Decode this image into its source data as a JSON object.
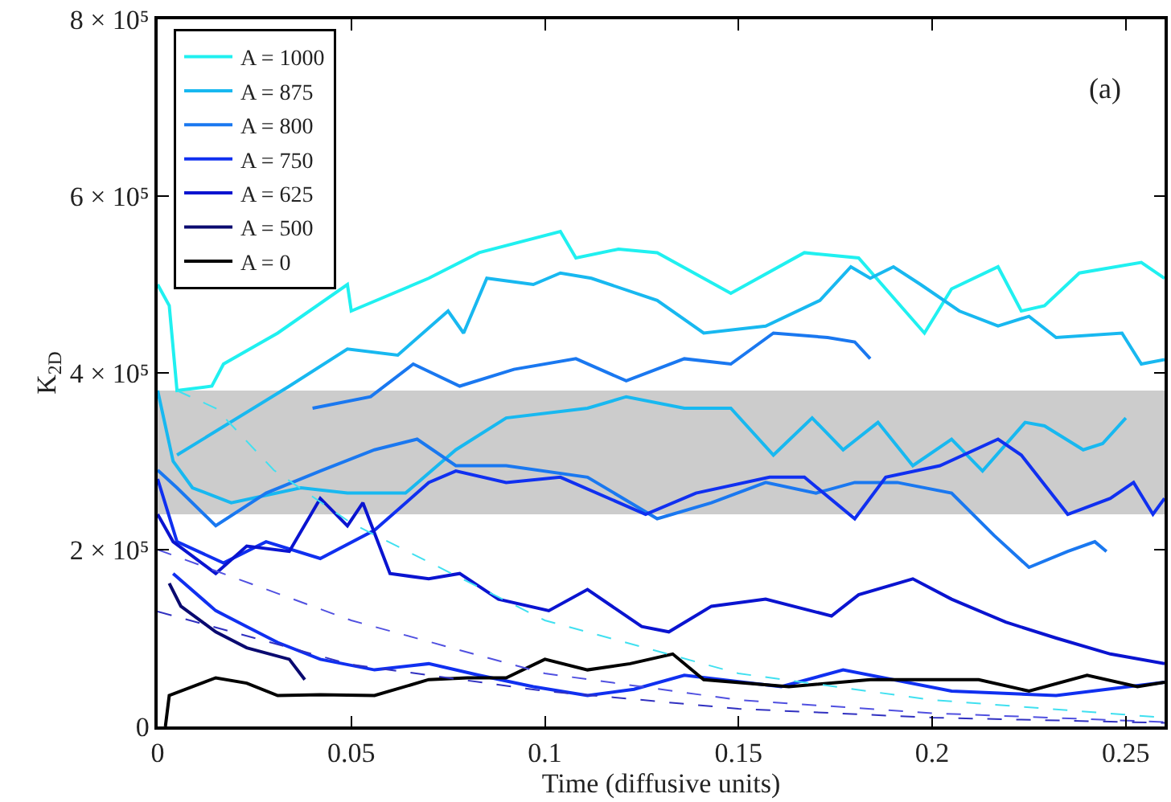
{
  "chart_data": {
    "type": "line",
    "xlabel": "Time (diffusive units)",
    "ylabel": "K$_{2D}$",
    "annotations": [
      "(a)"
    ],
    "xlim": [
      0,
      0.26
    ],
    "ylim": [
      0,
      800000
    ],
    "xticks": [
      0,
      0.05,
      0.1,
      0.15,
      0.2,
      0.25
    ],
    "yticks": [
      0,
      {
        "value": 200000,
        "label": "2 × 10⁵"
      },
      {
        "value": 400000,
        "label": "4 × 10⁵"
      },
      {
        "value": 600000,
        "label": "6 × 10⁵"
      },
      {
        "value": 800000,
        "label": "8 × 10⁵"
      }
    ],
    "bands": [
      {
        "axis": "y",
        "from": 240000,
        "to": 380000,
        "color": "#cccccc"
      }
    ],
    "legend": "top left",
    "grid": false,
    "marker": "none",
    "line_style": "solid",
    "series": [
      {
        "name": "A = 1000",
        "color": "#20f0f0",
        "x": [
          0,
          0.003,
          0.005,
          0.014,
          0.017,
          0.031,
          0.049,
          0.05,
          0.07,
          0.083,
          0.104,
          0.108,
          0.119,
          0.129,
          0.148,
          0.167,
          0.181,
          0.198,
          0.205,
          0.217,
          0.223,
          0.229,
          0.238,
          0.254,
          0.26
        ],
        "values": [
          500000,
          476000,
          380000,
          385000,
          410000,
          445000,
          500000,
          470000,
          507000,
          536000,
          560000,
          530000,
          540000,
          536000,
          490000,
          536000,
          530000,
          445000,
          495000,
          520000,
          470000,
          476000,
          513000,
          525000,
          507000
        ]
      },
      {
        "name": "A = 875",
        "color": "#18b8f0",
        "x": [
          0.005,
          0.034,
          0.049,
          0.062,
          0.075,
          0.079,
          0.085,
          0.097,
          0.104,
          0.112,
          0.129,
          0.141,
          0.157,
          0.171,
          0.179,
          0.184,
          0.19,
          0.197,
          0.207,
          0.217,
          0.225,
          0.232,
          0.249,
          0.254,
          0.26
        ],
        "values": [
          307000,
          385000,
          427000,
          420000,
          470000,
          445000,
          507000,
          500000,
          513000,
          507000,
          482000,
          445000,
          453000,
          482000,
          520000,
          507000,
          520000,
          500000,
          470000,
          453000,
          464000,
          440000,
          445000,
          410000,
          415000
        ]
      },
      {
        "color": "#18b8f0",
        "x": [
          0,
          0.004,
          0.009,
          0.019,
          0.037,
          0.049,
          0.064,
          0.077,
          0.09,
          0.111,
          0.121,
          0.136,
          0.148,
          0.159,
          0.169,
          0.177,
          0.186,
          0.195,
          0.205,
          0.213,
          0.224,
          0.229,
          0.239,
          0.244,
          0.25
        ],
        "values": [
          380000,
          300000,
          270000,
          253000,
          270000,
          264000,
          264000,
          313000,
          349000,
          360000,
          373000,
          360000,
          360000,
          307000,
          349000,
          313000,
          344000,
          295000,
          325000,
          289000,
          344000,
          340000,
          313000,
          320000,
          349000
        ]
      },
      {
        "name": "A = 800",
        "color": "#1a78f0",
        "x": [
          0.04,
          0.055,
          0.066,
          0.078,
          0.092,
          0.108,
          0.121,
          0.136,
          0.148,
          0.159,
          0.173,
          0.18,
          0.184
        ],
        "values": [
          360000,
          373000,
          410000,
          385000,
          404000,
          416000,
          391000,
          416000,
          410000,
          445000,
          440000,
          435000,
          416000
        ]
      },
      {
        "color": "#1a78f0",
        "x": [
          0,
          0.005,
          0.015,
          0.028,
          0.042,
          0.056,
          0.067,
          0.077,
          0.09,
          0.111,
          0.129,
          0.143,
          0.157,
          0.17,
          0.18,
          0.191,
          0.205,
          0.216,
          0.225,
          0.235,
          0.242,
          0.245
        ],
        "values": [
          290000,
          270000,
          227000,
          264000,
          289000,
          313000,
          325000,
          295000,
          295000,
          282000,
          235000,
          253000,
          276000,
          264000,
          276000,
          276000,
          264000,
          216000,
          180000,
          198000,
          209000,
          198000
        ]
      },
      {
        "name": "A = 750",
        "color": "#1030f0",
        "x": [
          0,
          0.005,
          0.017,
          0.028,
          0.042,
          0.056,
          0.062,
          0.07,
          0.077,
          0.09,
          0.104,
          0.126,
          0.139,
          0.158,
          0.167,
          0.18,
          0.188,
          0.202,
          0.217,
          0.223,
          0.235,
          0.246,
          0.252,
          0.257,
          0.26
        ],
        "values": [
          280000,
          209000,
          185000,
          209000,
          190000,
          222000,
          245000,
          276000,
          289000,
          276000,
          282000,
          240000,
          264000,
          282000,
          282000,
          235000,
          282000,
          295000,
          325000,
          307000,
          240000,
          258000,
          276000,
          240000,
          258000
        ]
      },
      {
        "color": "#1030f0",
        "x": [
          0.004,
          0.015,
          0.023,
          0.031,
          0.042,
          0.056,
          0.07,
          0.083,
          0.097,
          0.111,
          0.123,
          0.136,
          0.161,
          0.177,
          0.205,
          0.232,
          0.26
        ],
        "values": [
          173000,
          131000,
          113000,
          95000,
          76000,
          64000,
          71000,
          58000,
          45000,
          35000,
          42000,
          58000,
          45000,
          64000,
          40000,
          35000,
          50000
        ]
      },
      {
        "name": "A = 625",
        "color": "#0a14d0",
        "x": [
          0,
          0.004,
          0.015,
          0.023,
          0.034,
          0.042,
          0.049,
          0.053,
          0.06,
          0.07,
          0.078,
          0.088,
          0.101,
          0.111,
          0.125,
          0.132,
          0.143,
          0.157,
          0.174,
          0.181,
          0.195,
          0.205,
          0.219,
          0.232,
          0.246,
          0.26
        ],
        "values": [
          240000,
          209000,
          173000,
          204000,
          198000,
          258000,
          227000,
          253000,
          173000,
          167000,
          173000,
          144000,
          131000,
          155000,
          113000,
          107000,
          136000,
          144000,
          125000,
          149000,
          167000,
          144000,
          118000,
          100000,
          82000,
          71000
        ]
      },
      {
        "name": "A = 500",
        "color": "#0a0a70",
        "x": [
          0.003,
          0.006,
          0.015,
          0.023,
          0.034,
          0.038
        ],
        "values": [
          162000,
          136000,
          107000,
          89000,
          76000,
          53000
        ]
      },
      {
        "name": "A = 0",
        "color": "#000000",
        "x": [
          0.002,
          0.003,
          0.015,
          0.023,
          0.031,
          0.042,
          0.056,
          0.07,
          0.08,
          0.09,
          0.1,
          0.111,
          0.122,
          0.133,
          0.141,
          0.163,
          0.184,
          0.212,
          0.225,
          0.24,
          0.253,
          0.26
        ],
        "values": [
          0,
          35000,
          55000,
          49000,
          35000,
          36000,
          35000,
          53000,
          55000,
          55000,
          76000,
          64000,
          71000,
          82000,
          53000,
          45000,
          53000,
          53000,
          40000,
          58000,
          45000,
          50000
        ]
      },
      {
        "color": "#40e0f0",
        "line_style": "dashed",
        "x": [
          0.005,
          0.015,
          0.03,
          0.05,
          0.1,
          0.15,
          0.2,
          0.26
        ],
        "values": [
          380000,
          360000,
          290000,
          230000,
          120000,
          60000,
          30000,
          10000
        ]
      },
      {
        "color": "#5050e0",
        "line_style": "dashed",
        "x": [
          0,
          0.05,
          0.1,
          0.15,
          0.2,
          0.26
        ],
        "values": [
          200000,
          120000,
          60000,
          30000,
          15000,
          5000
        ]
      },
      {
        "color": "#3030c0",
        "line_style": "dashed",
        "x": [
          0,
          0.05,
          0.1,
          0.15,
          0.2,
          0.26
        ],
        "values": [
          130000,
          70000,
          40000,
          20000,
          10000,
          4000
        ]
      }
    ]
  }
}
